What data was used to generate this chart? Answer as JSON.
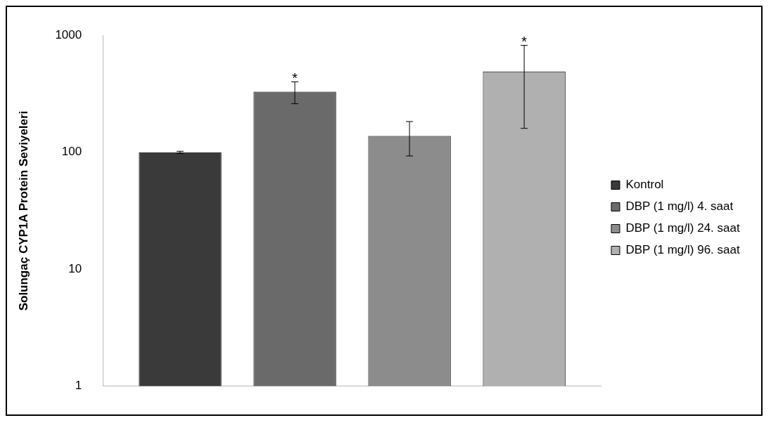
{
  "chart_data": {
    "type": "bar",
    "ylabel": "Solungaç CYP1A Protein Seviyeleri",
    "categories": [
      null
    ],
    "log": true,
    "ylim": [
      1,
      1000
    ],
    "yticks": [
      1,
      10,
      100,
      1000
    ],
    "grid": false,
    "legend": "right",
    "series": [
      {
        "name": "Kontrol",
        "color": "#3a3a3a",
        "values": [
          100
        ],
        "errors": [
          2
        ]
      },
      {
        "name": "DBP (1 mg/l) 4. saat",
        "color": "#6a6a6a",
        "values": [
          330
        ],
        "errors": [
          70
        ]
      },
      {
        "name": "DBP (1 mg/l) 24. saat",
        "color": "#8c8c8c",
        "values": [
          138
        ],
        "errors": [
          45
        ]
      },
      {
        "name": "DBP (1 mg/l) 96. saat",
        "color": "#b0b0b0",
        "values": [
          490
        ],
        "errors": [
          330
        ]
      }
    ],
    "annotations": [
      {
        "text": "*",
        "y": 400
      },
      {
        "text": "*",
        "y": 820
      }
    ]
  }
}
